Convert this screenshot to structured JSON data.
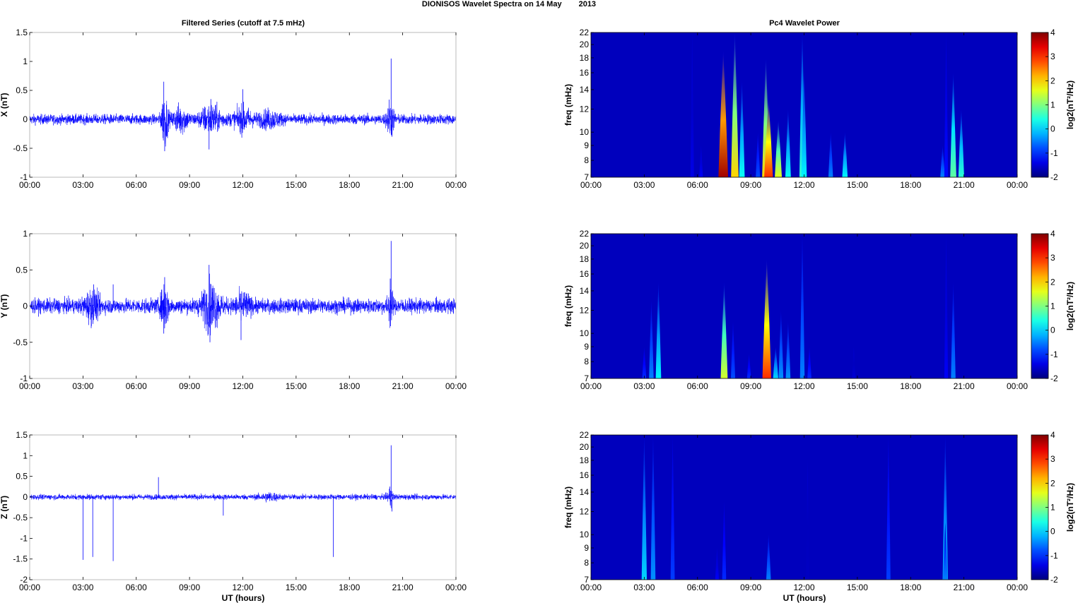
{
  "title": "DIONISOS Wavelet Spectra on 14 May",
  "year": "2013",
  "chart_data": {
    "type": "line",
    "left_title": "Filtered Series (cutoff at 7.5 mHz)",
    "right_title": "Pc4 Wavelet Power",
    "xlabel": "UT (hours)",
    "xlim": [
      0,
      24
    ],
    "xticks": [
      0,
      3,
      6,
      9,
      12,
      15,
      18,
      21,
      24
    ],
    "xtick_labels": [
      "00:00",
      "03:00",
      "06:00",
      "09:00",
      "12:00",
      "15:00",
      "18:00",
      "21:00",
      "00:00"
    ],
    "series_color": "#0000ff",
    "series": [
      {
        "name": "X",
        "ylabel": "X (nT)",
        "ylim": [
          -1,
          1.5
        ],
        "yticks": [
          -1,
          -0.5,
          0,
          0.5,
          1,
          1.5
        ],
        "ytick_labels": [
          "-1",
          "-0.5",
          "0",
          "0.5",
          "1",
          "1.5"
        ],
        "noise_level": 0.06,
        "bursts": [
          [
            7.6,
            0.35,
            0.3
          ],
          [
            8.5,
            0.8,
            0.14
          ],
          [
            10.2,
            1.2,
            0.15
          ],
          [
            12.0,
            1.0,
            0.12
          ],
          [
            13.5,
            1.2,
            0.08
          ],
          [
            20.3,
            0.4,
            0.2
          ]
        ],
        "spikes": [
          [
            7.55,
            0.65
          ],
          [
            7.6,
            -0.55
          ],
          [
            10.1,
            -0.52
          ],
          [
            10.2,
            0.35
          ],
          [
            12.0,
            0.52
          ],
          [
            20.35,
            1.05
          ],
          [
            20.4,
            -0.3
          ]
        ]
      },
      {
        "name": "Y",
        "ylabel": "Y (nT)",
        "ylim": [
          -1,
          1
        ],
        "yticks": [
          -1,
          -0.5,
          0,
          0.5,
          1
        ],
        "ytick_labels": [
          "-1",
          "-0.5",
          "0",
          "0.5",
          "1"
        ],
        "noise_level": 0.07,
        "bursts": [
          [
            3.5,
            0.8,
            0.12
          ],
          [
            7.6,
            0.4,
            0.2
          ],
          [
            10.2,
            1.0,
            0.2
          ],
          [
            12.0,
            0.8,
            0.1
          ],
          [
            20.3,
            0.3,
            0.15
          ]
        ],
        "spikes": [
          [
            3.6,
            0.3
          ],
          [
            4.7,
            0.3
          ],
          [
            7.6,
            0.4
          ],
          [
            7.55,
            -0.38
          ],
          [
            10.1,
            0.57
          ],
          [
            10.15,
            -0.5
          ],
          [
            11.9,
            -0.47
          ],
          [
            20.35,
            0.9
          ],
          [
            20.3,
            0.38
          ]
        ]
      },
      {
        "name": "Z",
        "ylabel": "Z (nT)",
        "ylim": [
          -2,
          1.5
        ],
        "yticks": [
          -2,
          -1.5,
          -1,
          -0.5,
          0,
          0.5,
          1,
          1.5
        ],
        "ytick_labels": [
          "-2",
          "-1.5",
          "-1",
          "-0.5",
          "0",
          "0.5",
          "1",
          "1.5"
        ],
        "noise_level": 0.045,
        "bursts": [
          [
            13.5,
            1.0,
            0.05
          ],
          [
            20.3,
            0.3,
            0.15
          ]
        ],
        "spikes": [
          [
            3.0,
            -1.52
          ],
          [
            3.55,
            -1.45
          ],
          [
            4.7,
            -1.55
          ],
          [
            7.25,
            0.48
          ],
          [
            10.9,
            -0.45
          ],
          [
            17.1,
            -1.45
          ],
          [
            20.35,
            1.25
          ],
          [
            20.4,
            -0.35
          ]
        ]
      }
    ],
    "spectrogram": {
      "type": "heatmap",
      "ylabel": "freq (mHz)",
      "ylim": [
        7,
        22
      ],
      "yscale": "log",
      "yticks": [
        7,
        8,
        9,
        10,
        12,
        14,
        16,
        18,
        20,
        22
      ],
      "ytick_labels": [
        "7",
        "8",
        "9",
        "10",
        "12",
        "14",
        "16",
        "18",
        "20",
        "22"
      ],
      "colorbar_label": "log2(nT²/Hz)",
      "clim": [
        -2,
        4
      ],
      "cticks": [
        -2,
        -1,
        0,
        1,
        2,
        3,
        4
      ],
      "ctick_labels": [
        "-2",
        "-1",
        "0",
        "1",
        "2",
        "3",
        "4"
      ],
      "panels": [
        {
          "name": "X",
          "events": [
            [
              7.45,
              19,
              3.8
            ],
            [
              8.1,
              22,
              2.0
            ],
            [
              8.5,
              15,
              0.3
            ],
            [
              9.4,
              10,
              -0.8
            ],
            [
              9.85,
              18,
              2.0
            ],
            [
              10.0,
              13,
              3.0
            ],
            [
              10.55,
              11,
              1.6
            ],
            [
              11.1,
              12,
              0.3
            ],
            [
              11.9,
              22,
              0.5
            ],
            [
              12.0,
              16,
              0.2
            ],
            [
              13.5,
              10,
              -0.5
            ],
            [
              14.3,
              10,
              0.2
            ],
            [
              19.8,
              9,
              -0.5
            ],
            [
              20.4,
              16,
              0.8
            ],
            [
              20.85,
              12,
              0.5
            ],
            [
              20.0,
              22,
              -1.2
            ],
            [
              6.2,
              9,
              -1.3
            ],
            [
              5.7,
              22,
              -1.4
            ]
          ]
        },
        {
          "name": "Y",
          "events": [
            [
              3.4,
              13,
              -0.5
            ],
            [
              3.8,
              15,
              0.2
            ],
            [
              7.5,
              15,
              1.5
            ],
            [
              8.0,
              11,
              -0.8
            ],
            [
              8.9,
              8.5,
              -1.0
            ],
            [
              9.9,
              18,
              3.0
            ],
            [
              10.4,
              9,
              0.0
            ],
            [
              10.7,
              12,
              -0.4
            ],
            [
              11.1,
              11,
              -0.4
            ],
            [
              11.9,
              22,
              -0.5
            ],
            [
              12.3,
              9,
              -1.0
            ],
            [
              14.8,
              9,
              -1.5
            ],
            [
              20.4,
              15,
              -0.5
            ],
            [
              20.0,
              22,
              -1.3
            ],
            [
              3.0,
              9,
              -1.0
            ]
          ]
        },
        {
          "name": "Z",
          "events": [
            [
              3.0,
              22,
              0.0
            ],
            [
              3.5,
              22,
              -0.4
            ],
            [
              4.6,
              22,
              -0.9
            ],
            [
              7.1,
              9,
              -1.3
            ],
            [
              7.5,
              13,
              -1.0
            ],
            [
              10.0,
              10,
              -0.5
            ],
            [
              16.75,
              22,
              -0.9
            ],
            [
              19.95,
              22,
              0.0
            ],
            [
              19.95,
              11,
              -0.5
            ],
            [
              12.2,
              18,
              -1.6
            ]
          ]
        }
      ]
    }
  }
}
